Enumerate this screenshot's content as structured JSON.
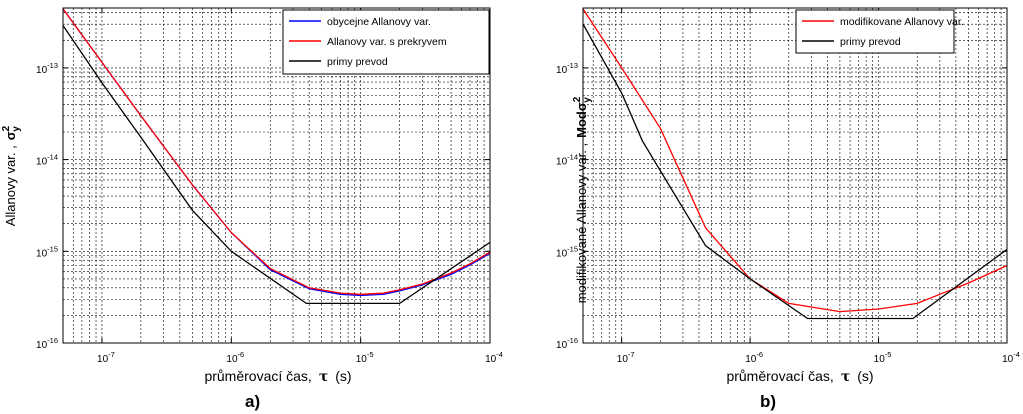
{
  "colors": {
    "blue": "#0000ff",
    "red": "#ff0000",
    "black": "#000000",
    "grid": "#000000",
    "background": "#ffffff"
  },
  "chart_data": [
    {
      "type": "line",
      "panel_label": "a)",
      "xlabel": "průměrovací čas,",
      "xlabel_symbol": "τ",
      "xlabel_unit": "(s)",
      "ylabel": "Allanovy var. ,",
      "ylabel_symbol": "σ",
      "ylabel_sup": "2",
      "ylabel_sub": "y",
      "xscale": "log",
      "yscale": "log",
      "xlim": [
        5e-08,
        0.0001
      ],
      "ylim": [
        1e-16,
        4.5e-13
      ],
      "grid": true,
      "legend_position": "top-right",
      "xtick_values": [
        1e-07,
        1e-06,
        1e-05,
        0.0001
      ],
      "xtick_labels": [
        {
          "base": "10",
          "exp": "-7"
        },
        {
          "base": "10",
          "exp": "-6"
        },
        {
          "base": "10",
          "exp": "-5"
        },
        {
          "base": "10",
          "exp": "-4"
        }
      ],
      "ytick_values": [
        1e-16,
        1e-15,
        1e-14,
        1e-13
      ],
      "ytick_labels": [
        {
          "base": "10",
          "exp": "-16"
        },
        {
          "base": "10",
          "exp": "-15"
        },
        {
          "base": "10",
          "exp": "-14"
        },
        {
          "base": "10",
          "exp": "-13"
        }
      ],
      "series": [
        {
          "name": "obycejne Allanovy var.",
          "color": "#0000ff",
          "x": [
            5e-08,
            1e-07,
            2e-07,
            5e-07,
            1e-06,
            2e-06,
            4e-06,
            7e-06,
            1e-05,
            1.5e-05,
            2e-05,
            3e-05,
            5e-05,
            7e-05,
            0.0001
          ],
          "y": [
            4.4e-13,
            1.15e-13,
            3e-14,
            5.3e-15,
            1.6e-15,
            6.3e-16,
            3.9e-16,
            3.4e-16,
            3.3e-16,
            3.4e-16,
            3.7e-16,
            4.3e-16,
            5.6e-16,
            7.1e-16,
            9.5e-16
          ]
        },
        {
          "name": "Allanovy var. s prekryvem",
          "color": "#ff0000",
          "x": [
            5e-08,
            1e-07,
            2e-07,
            5e-07,
            1e-06,
            2e-06,
            4e-06,
            7e-06,
            1e-05,
            1.5e-05,
            2e-05,
            3e-05,
            5e-05,
            7e-05,
            0.0001
          ],
          "y": [
            4.4e-13,
            1.15e-13,
            3e-14,
            5.3e-15,
            1.6e-15,
            6.5e-16,
            4e-16,
            3.5e-16,
            3.4e-16,
            3.5e-16,
            3.8e-16,
            4.4e-16,
            5.8e-16,
            7.3e-16,
            9.8e-16
          ]
        },
        {
          "name": "primy prevod",
          "color": "#000000",
          "x": [
            5e-08,
            1e-07,
            2e-07,
            5e-07,
            1e-06,
            3.8e-06,
            2e-05,
            0.0001
          ],
          "y": [
            2.9e-13,
            6.9e-14,
            1.75e-14,
            2.8e-15,
            1e-15,
            2.7e-16,
            2.7e-16,
            1.25e-15
          ]
        }
      ]
    },
    {
      "type": "line",
      "panel_label": "b)",
      "xlabel": "průměrovací čas,",
      "xlabel_symbol": "τ",
      "xlabel_unit": "(s)",
      "ylabel": "modifikované Allanovy var. ,",
      "ylabel_symbol": "Modσ",
      "ylabel_sup": "2",
      "ylabel_sub": "y",
      "xscale": "log",
      "yscale": "log",
      "xlim": [
        5e-08,
        0.0001
      ],
      "ylim": [
        1e-16,
        4.5e-13
      ],
      "grid": true,
      "legend_position": "top-right",
      "xtick_values": [
        1e-07,
        1e-06,
        1e-05,
        0.0001
      ],
      "xtick_labels": [
        {
          "base": "10",
          "exp": "-7"
        },
        {
          "base": "10",
          "exp": "-6"
        },
        {
          "base": "10",
          "exp": "-5"
        },
        {
          "base": "10",
          "exp": "-4"
        }
      ],
      "ytick_values": [
        1e-16,
        1e-15,
        1e-14,
        1e-13
      ],
      "ytick_labels": [
        {
          "base": "10",
          "exp": "-16"
        },
        {
          "base": "10",
          "exp": "-15"
        },
        {
          "base": "10",
          "exp": "-14"
        },
        {
          "base": "10",
          "exp": "-13"
        }
      ],
      "series": [
        {
          "name": "modifikovane Allanovy var.",
          "color": "#ff0000",
          "x": [
            5e-08,
            1e-07,
            2e-07,
            4.5e-07,
            1e-06,
            2e-06,
            5e-06,
            1e-05,
            2e-05,
            3e-05,
            5e-05,
            0.0001
          ],
          "y": [
            4.4e-13,
            1e-13,
            2.2e-14,
            1.8e-15,
            5e-16,
            2.7e-16,
            2.2e-16,
            2.35e-16,
            2.7e-16,
            3.4e-16,
            4.5e-16,
            7e-16
          ]
        },
        {
          "name": "primy prevod",
          "color": "#000000",
          "x": [
            5e-08,
            1e-07,
            1.45e-07,
            4.5e-07,
            1e-06,
            2.8e-06,
            1.85e-05,
            0.0001
          ],
          "y": [
            3e-13,
            5.3e-14,
            1.6e-14,
            1.15e-15,
            5e-16,
            1.85e-16,
            1.85e-16,
            1.05e-15
          ]
        }
      ]
    }
  ]
}
